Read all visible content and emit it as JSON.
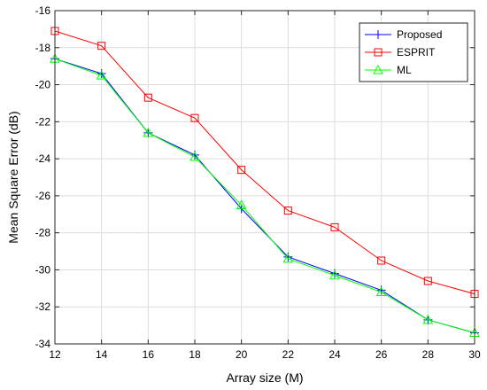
{
  "chart_data": {
    "type": "line",
    "xlabel": "Array size (M)",
    "ylabel": "Mean Square Error (dB)",
    "xlim": [
      12,
      30
    ],
    "ylim": [
      -34,
      -16
    ],
    "xticks": [
      12,
      14,
      16,
      18,
      20,
      22,
      24,
      26,
      28,
      30
    ],
    "yticks": [
      -16,
      -18,
      -20,
      -22,
      -24,
      -26,
      -28,
      -30,
      -32,
      -34
    ],
    "grid": true,
    "legend_position": "top-right",
    "x": [
      12,
      14,
      16,
      18,
      20,
      22,
      24,
      26,
      28,
      30
    ],
    "series": [
      {
        "name": "Proposed",
        "color": "#0000ff",
        "marker": "plus",
        "values": [
          -18.6,
          -19.4,
          -22.6,
          -23.8,
          -26.7,
          -29.3,
          -30.2,
          -31.1,
          -32.7,
          -33.4
        ]
      },
      {
        "name": "ESPRIT",
        "color": "#ff0000",
        "marker": "square",
        "values": [
          -17.1,
          -17.9,
          -20.7,
          -21.8,
          -24.6,
          -26.8,
          -27.7,
          -29.5,
          -30.6,
          -31.3
        ]
      },
      {
        "name": "ML",
        "color": "#00ff00",
        "marker": "triangle",
        "values": [
          -18.6,
          -19.5,
          -22.6,
          -23.9,
          -26.5,
          -29.4,
          -30.3,
          -31.2,
          -32.7,
          -33.4
        ]
      }
    ]
  }
}
